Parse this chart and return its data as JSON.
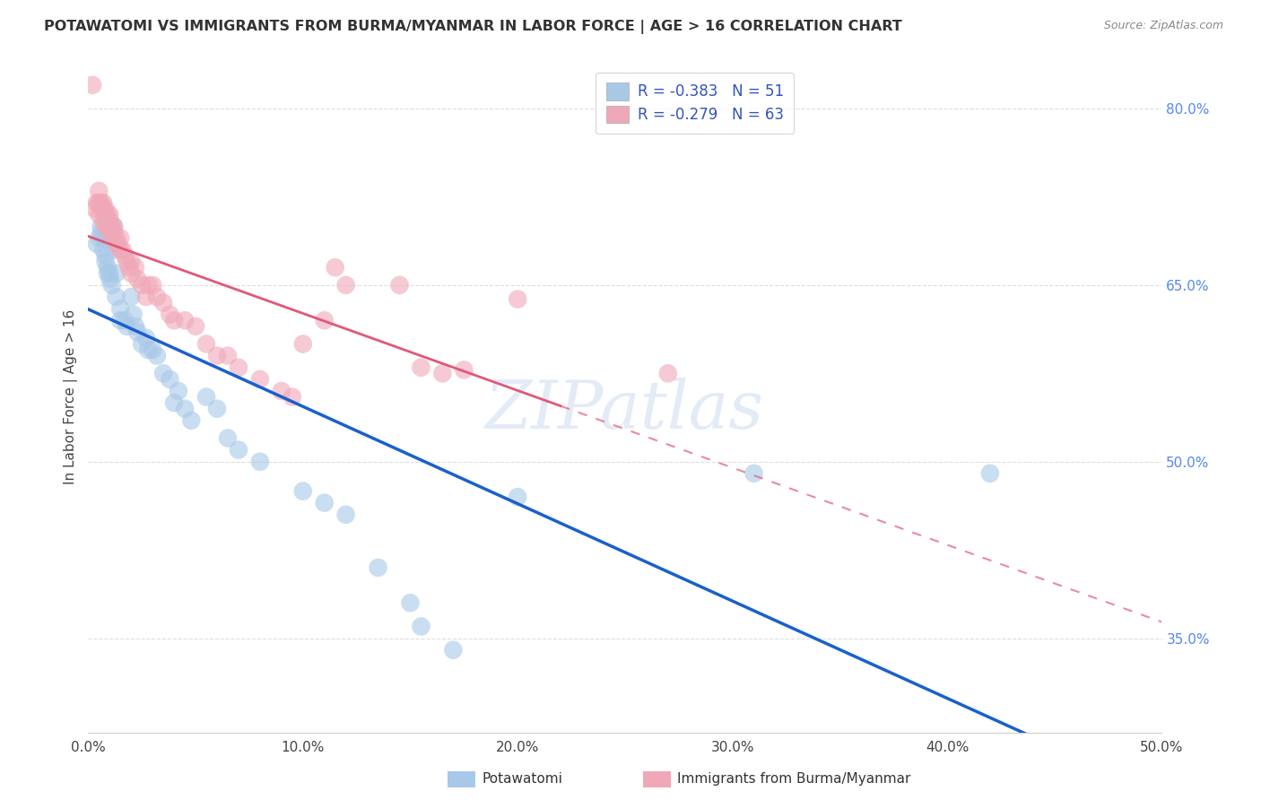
{
  "title": "POTAWATOMI VS IMMIGRANTS FROM BURMA/MYANMAR IN LABOR FORCE | AGE > 16 CORRELATION CHART",
  "source": "Source: ZipAtlas.com",
  "ylabel": "In Labor Force | Age > 16",
  "xlim": [
    0.0,
    0.5
  ],
  "ylim": [
    0.27,
    0.84
  ],
  "xticks": [
    0.0,
    0.1,
    0.2,
    0.3,
    0.4,
    0.5
  ],
  "xticklabels": [
    "0.0%",
    "10.0%",
    "20.0%",
    "30.0%",
    "40.0%",
    "50.0%"
  ],
  "yticks_right": [
    0.35,
    0.5,
    0.65,
    0.8
  ],
  "ytick_right_labels": [
    "35.0%",
    "50.0%",
    "65.0%",
    "80.0%"
  ],
  "blue_R": -0.383,
  "blue_N": 51,
  "pink_R": -0.279,
  "pink_N": 63,
  "blue_color": "#a8c8e8",
  "pink_color": "#f0a8b8",
  "blue_line_color": "#1a60cc",
  "pink_line_color": "#e05878",
  "blue_label": "Potawatomi",
  "pink_label": "Immigrants from Burma/Myanmar",
  "watermark": "ZIPatlas",
  "blue_scatter": [
    [
      0.004,
      0.685
    ],
    [
      0.005,
      0.69
    ],
    [
      0.006,
      0.695
    ],
    [
      0.006,
      0.7
    ],
    [
      0.007,
      0.68
    ],
    [
      0.007,
      0.69
    ],
    [
      0.008,
      0.67
    ],
    [
      0.008,
      0.675
    ],
    [
      0.009,
      0.66
    ],
    [
      0.009,
      0.665
    ],
    [
      0.01,
      0.655
    ],
    [
      0.01,
      0.66
    ],
    [
      0.011,
      0.65
    ],
    [
      0.012,
      0.68
    ],
    [
      0.012,
      0.7
    ],
    [
      0.013,
      0.66
    ],
    [
      0.013,
      0.64
    ],
    [
      0.015,
      0.62
    ],
    [
      0.015,
      0.63
    ],
    [
      0.017,
      0.62
    ],
    [
      0.018,
      0.615
    ],
    [
      0.02,
      0.64
    ],
    [
      0.021,
      0.625
    ],
    [
      0.022,
      0.615
    ],
    [
      0.023,
      0.61
    ],
    [
      0.025,
      0.6
    ],
    [
      0.027,
      0.605
    ],
    [
      0.028,
      0.595
    ],
    [
      0.03,
      0.595
    ],
    [
      0.032,
      0.59
    ],
    [
      0.035,
      0.575
    ],
    [
      0.038,
      0.57
    ],
    [
      0.04,
      0.55
    ],
    [
      0.042,
      0.56
    ],
    [
      0.045,
      0.545
    ],
    [
      0.048,
      0.535
    ],
    [
      0.055,
      0.555
    ],
    [
      0.06,
      0.545
    ],
    [
      0.065,
      0.52
    ],
    [
      0.07,
      0.51
    ],
    [
      0.08,
      0.5
    ],
    [
      0.1,
      0.475
    ],
    [
      0.11,
      0.465
    ],
    [
      0.12,
      0.455
    ],
    [
      0.135,
      0.41
    ],
    [
      0.15,
      0.38
    ],
    [
      0.155,
      0.36
    ],
    [
      0.17,
      0.34
    ],
    [
      0.2,
      0.47
    ],
    [
      0.31,
      0.49
    ],
    [
      0.42,
      0.49
    ]
  ],
  "pink_scatter": [
    [
      0.002,
      0.82
    ],
    [
      0.003,
      0.715
    ],
    [
      0.004,
      0.72
    ],
    [
      0.005,
      0.73
    ],
    [
      0.005,
      0.72
    ],
    [
      0.005,
      0.71
    ],
    [
      0.006,
      0.72
    ],
    [
      0.006,
      0.715
    ],
    [
      0.007,
      0.72
    ],
    [
      0.007,
      0.715
    ],
    [
      0.007,
      0.705
    ],
    [
      0.008,
      0.715
    ],
    [
      0.008,
      0.71
    ],
    [
      0.008,
      0.7
    ],
    [
      0.009,
      0.71
    ],
    [
      0.009,
      0.7
    ],
    [
      0.01,
      0.71
    ],
    [
      0.01,
      0.705
    ],
    [
      0.01,
      0.695
    ],
    [
      0.011,
      0.7
    ],
    [
      0.011,
      0.695
    ],
    [
      0.012,
      0.7
    ],
    [
      0.012,
      0.695
    ],
    [
      0.013,
      0.69
    ],
    [
      0.013,
      0.685
    ],
    [
      0.014,
      0.685
    ],
    [
      0.015,
      0.69
    ],
    [
      0.015,
      0.68
    ],
    [
      0.016,
      0.68
    ],
    [
      0.017,
      0.675
    ],
    [
      0.018,
      0.67
    ],
    [
      0.019,
      0.665
    ],
    [
      0.02,
      0.67
    ],
    [
      0.02,
      0.66
    ],
    [
      0.022,
      0.665
    ],
    [
      0.023,
      0.655
    ],
    [
      0.025,
      0.65
    ],
    [
      0.027,
      0.64
    ],
    [
      0.028,
      0.65
    ],
    [
      0.03,
      0.65
    ],
    [
      0.032,
      0.64
    ],
    [
      0.035,
      0.635
    ],
    [
      0.038,
      0.625
    ],
    [
      0.04,
      0.62
    ],
    [
      0.045,
      0.62
    ],
    [
      0.05,
      0.615
    ],
    [
      0.055,
      0.6
    ],
    [
      0.06,
      0.59
    ],
    [
      0.065,
      0.59
    ],
    [
      0.07,
      0.58
    ],
    [
      0.08,
      0.57
    ],
    [
      0.09,
      0.56
    ],
    [
      0.095,
      0.555
    ],
    [
      0.1,
      0.6
    ],
    [
      0.11,
      0.62
    ],
    [
      0.115,
      0.665
    ],
    [
      0.12,
      0.65
    ],
    [
      0.145,
      0.65
    ],
    [
      0.155,
      0.58
    ],
    [
      0.165,
      0.575
    ],
    [
      0.175,
      0.578
    ],
    [
      0.2,
      0.638
    ],
    [
      0.27,
      0.575
    ]
  ],
  "grid_color": "#dddddd",
  "background_color": "#ffffff",
  "legend_text_color": "#3355bb"
}
